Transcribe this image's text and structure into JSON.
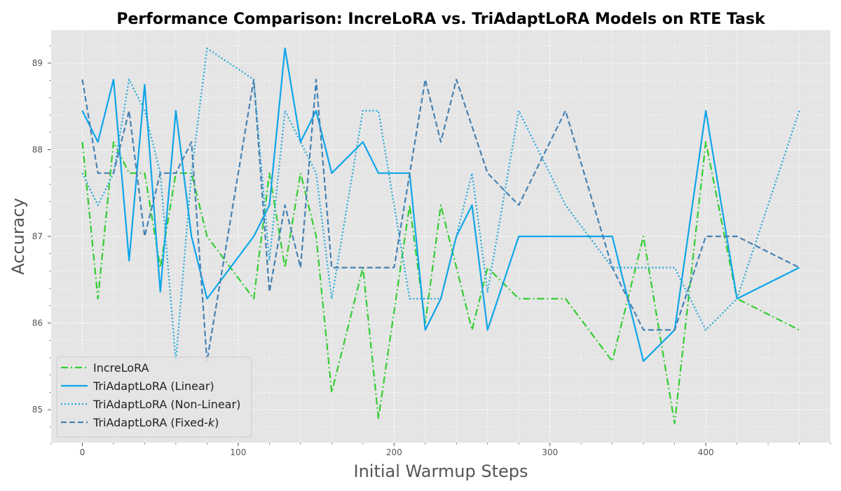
{
  "chart_data": {
    "type": "line",
    "title": "Performance Comparison: IncreLoRA vs. TriAdaptLoRA Models on RTE Task",
    "xlabel": "Initial Warmup Steps",
    "ylabel": "Accuracy",
    "xlim": [
      -20,
      480
    ],
    "ylim": [
      84.62,
      89.38
    ],
    "xticks": [
      0,
      100,
      200,
      300,
      400
    ],
    "yticks": [
      85,
      86,
      87,
      88,
      89
    ],
    "grid": true,
    "legend_position": "lower-left",
    "series": [
      {
        "name": "IncreLoRA",
        "style": "dashdot",
        "color": "#32cd32",
        "x": [
          0,
          10,
          20,
          30,
          40,
          50,
          60,
          70,
          80,
          110,
          120,
          130,
          140,
          150,
          160,
          180,
          190,
          210,
          220,
          230,
          250,
          260,
          280,
          310,
          340,
          360,
          380,
          400,
          420,
          460
        ],
        "y": [
          88.09,
          86.28,
          88.09,
          87.73,
          87.73,
          86.64,
          87.73,
          87.73,
          87.0,
          86.28,
          87.73,
          86.64,
          87.73,
          87.0,
          85.2,
          86.64,
          84.9,
          87.36,
          86.0,
          87.36,
          85.92,
          86.64,
          86.28,
          86.28,
          85.56,
          87.0,
          84.84,
          88.09,
          86.28,
          85.92
        ]
      },
      {
        "name": "TriAdaptLoRA (Linear)",
        "style": "solid",
        "color": "#0ea5e9",
        "x": [
          0,
          10,
          20,
          30,
          40,
          50,
          60,
          70,
          80,
          110,
          120,
          130,
          140,
          150,
          160,
          180,
          190,
          210,
          220,
          230,
          240,
          250,
          260,
          280,
          340,
          360,
          380,
          400,
          420,
          460
        ],
        "y": [
          88.45,
          88.09,
          88.81,
          86.72,
          88.75,
          86.36,
          88.45,
          87.0,
          86.28,
          87.0,
          87.36,
          89.17,
          88.09,
          88.45,
          87.73,
          88.09,
          87.73,
          87.73,
          85.92,
          86.28,
          87.0,
          87.36,
          85.92,
          87.0,
          87.0,
          85.56,
          85.92,
          88.45,
          86.28,
          86.64
        ]
      },
      {
        "name": "TriAdaptLoRA (Non-Linear)",
        "style": "dotted",
        "color": "#1fa8d9",
        "x": [
          0,
          10,
          20,
          30,
          40,
          50,
          60,
          70,
          80,
          110,
          120,
          130,
          140,
          150,
          160,
          180,
          190,
          210,
          230,
          250,
          260,
          280,
          310,
          340,
          380,
          400,
          420,
          460
        ],
        "y": [
          87.73,
          87.36,
          87.73,
          88.81,
          88.45,
          87.73,
          85.56,
          87.73,
          89.17,
          88.81,
          86.72,
          88.45,
          88.09,
          87.73,
          86.28,
          88.45,
          88.45,
          86.28,
          86.28,
          87.73,
          86.36,
          88.45,
          87.36,
          86.64,
          86.64,
          85.92,
          86.28,
          88.45
        ]
      },
      {
        "name": "TriAdaptLoRA (Fixed-",
        "name_italic_suffix": "k",
        "name_tail": ")",
        "style": "dashed",
        "color": "#4682b4",
        "x": [
          0,
          10,
          20,
          30,
          40,
          50,
          60,
          70,
          80,
          110,
          120,
          130,
          140,
          150,
          160,
          180,
          200,
          220,
          230,
          240,
          260,
          280,
          310,
          340,
          360,
          380,
          400,
          420,
          460
        ],
        "y": [
          88.81,
          87.73,
          87.73,
          88.45,
          87.0,
          87.73,
          87.73,
          88.09,
          85.56,
          88.81,
          86.36,
          87.36,
          86.64,
          88.81,
          86.64,
          86.64,
          86.64,
          88.81,
          88.09,
          88.81,
          87.73,
          87.36,
          88.45,
          86.64,
          85.92,
          85.92,
          87.0,
          87.0,
          86.64
        ]
      }
    ]
  }
}
